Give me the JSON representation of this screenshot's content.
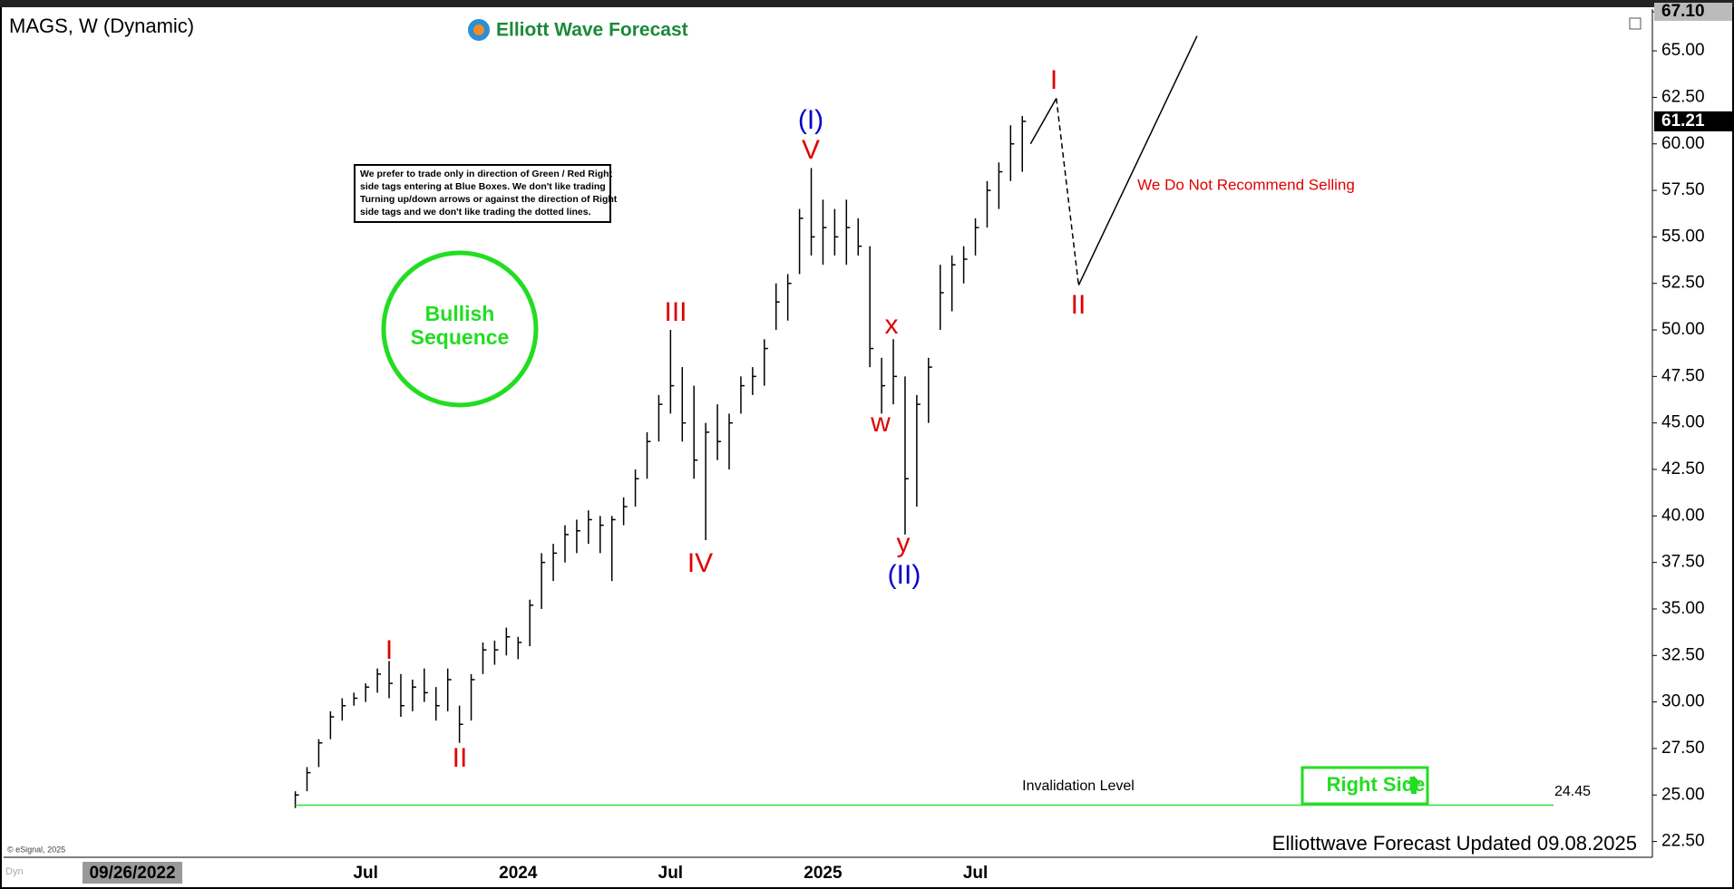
{
  "chart_data": {
    "type": "ohlc",
    "title": "MAGS, W (Dynamic)",
    "brand": "Elliott Wave Forecast",
    "categories": [
      null,
      null,
      null,
      null,
      null,
      null,
      "Jul",
      null,
      null,
      null,
      null,
      null,
      null,
      null,
      null,
      null,
      null,
      null,
      null,
      "2024",
      null,
      null,
      null,
      null,
      null,
      null,
      null,
      null,
      null,
      null,
      null,
      null,
      "Jul",
      null,
      null,
      null,
      null,
      null,
      null,
      null,
      null,
      null,
      null,
      null,
      null,
      "2025",
      null,
      null,
      null,
      null,
      null,
      null,
      null,
      null,
      null,
      null,
      null,
      null,
      "Jul",
      null,
      null,
      null,
      null
    ],
    "high": [
      25.2,
      26.5,
      28,
      29.5,
      30.2,
      30.5,
      31,
      31.8,
      32.2,
      31.5,
      31.2,
      31.8,
      30.8,
      31.8,
      29.8,
      31.5,
      33.2,
      33.3,
      34,
      33.5,
      35.5,
      38,
      38.5,
      39.5,
      39.8,
      40.3,
      40,
      40,
      41,
      42.5,
      44.5,
      46.5,
      50,
      48,
      47,
      45,
      46,
      45.5,
      47.5,
      48,
      49.5,
      52.5,
      53,
      56.5,
      58.7,
      57,
      56.5,
      57,
      56,
      54.5,
      48.5,
      49.5,
      47.5,
      46.5,
      48.5,
      53.5,
      54,
      54.5,
      56,
      58,
      59,
      61,
      61.5
    ],
    "low": [
      24.3,
      25.2,
      26.5,
      28,
      29,
      29.8,
      30,
      30.5,
      30.2,
      29.2,
      29.5,
      30,
      29,
      29.5,
      27.8,
      29,
      31.5,
      32,
      32.5,
      32.3,
      33,
      35,
      36.5,
      37.5,
      38,
      38.5,
      38,
      36.5,
      39.5,
      40.5,
      42,
      44,
      45.5,
      44,
      42,
      38.7,
      43,
      42.5,
      45.5,
      46.5,
      47,
      50,
      50.5,
      53,
      54,
      53.5,
      54,
      53.5,
      54,
      48,
      45.5,
      46,
      39,
      40.5,
      45,
      50,
      51,
      52.5,
      54,
      55.5,
      56.5,
      58,
      58.5
    ],
    "close": [
      25,
      26.2,
      27.8,
      29.2,
      29.8,
      30.2,
      30.8,
      31.5,
      31,
      29.8,
      30.8,
      30.5,
      29.8,
      31.2,
      28.8,
      31.2,
      32.8,
      32.8,
      33.5,
      33.2,
      35.2,
      37.5,
      38,
      39,
      39.2,
      39.8,
      39.5,
      39.8,
      40.5,
      42,
      44,
      46,
      47,
      45,
      43,
      44.5,
      44,
      45,
      47,
      47.5,
      49,
      51.5,
      52.5,
      56,
      55,
      55.5,
      55,
      55.5,
      54.5,
      49,
      47,
      47.5,
      42,
      46,
      48,
      52,
      53.5,
      53.8,
      55.5,
      57.5,
      58.5,
      60,
      61.21
    ],
    "color": "#000000",
    "ylim": [
      21.7,
      67.1
    ],
    "yticks": [
      {
        "value": 22.5,
        "label": "22.50"
      },
      {
        "value": 25,
        "label": "25.00"
      },
      {
        "value": 27.5,
        "label": "27.50"
      },
      {
        "value": 30,
        "label": "30.00"
      },
      {
        "value": 32.5,
        "label": "32.50"
      },
      {
        "value": 35,
        "label": "35.00"
      },
      {
        "value": 37.5,
        "label": "37.50"
      },
      {
        "value": 40,
        "label": "40.00"
      },
      {
        "value": 42.5,
        "label": "42.50"
      },
      {
        "value": 45,
        "label": "45.00"
      },
      {
        "value": 47.5,
        "label": "47.50"
      },
      {
        "value": 50,
        "label": "50.00"
      },
      {
        "value": 52.5,
        "label": "52.50"
      },
      {
        "value": 55,
        "label": "55.00"
      },
      {
        "value": 57.5,
        "label": "57.50"
      },
      {
        "value": 60,
        "label": "60.00"
      },
      {
        "value": 62.5,
        "label": "62.50"
      },
      {
        "value": 65,
        "label": "65.00"
      },
      {
        "value": 67.1,
        "label": "67.10"
      }
    ],
    "last_price": 61.21,
    "cursor_date": "09/26/2022",
    "wave_labels": [
      {
        "text": "I",
        "color": "#e00000"
      },
      {
        "text": "II",
        "color": "#e00000"
      },
      {
        "text": "III",
        "color": "#e00000"
      },
      {
        "text": "IV",
        "color": "#e00000"
      },
      {
        "text": "V",
        "color": "#e00000"
      },
      {
        "text": "(I)",
        "color": "#0000cc"
      },
      {
        "text": "x",
        "color": "#e00000"
      },
      {
        "text": "w",
        "color": "#e00000"
      },
      {
        "text": "y",
        "color": "#e00000"
      },
      {
        "text": "(II)",
        "color": "#0000cc"
      },
      {
        "text": "I",
        "color": "#e00000"
      },
      {
        "text": "II",
        "color": "#e00000"
      }
    ],
    "projection": {
      "x": [
        62.7,
        64.9,
        66.8,
        76.9
      ],
      "y": [
        60.0,
        62.45,
        52.4,
        65.8
      ]
    },
    "invalidation": {
      "label": "Invalidation Level",
      "value": 24.45,
      "color": "#33dd33"
    },
    "disclaimer": [
      "We prefer to trade only in direction of Green / Red Right",
      "side tags entering at Blue Boxes. We don't like trading",
      "Turning up/down arrows or against the direction of Right",
      "side tags and we don't like trading the dotted lines."
    ],
    "bullish": [
      "Bullish",
      "Sequence"
    ],
    "warning": "We Do Not Recommend Selling",
    "right_side": "Right Side",
    "updated": "Elliottwave Forecast Updated 09.08.2025",
    "copyright": "© eSignal, 2025",
    "dyn": "Dyn"
  }
}
